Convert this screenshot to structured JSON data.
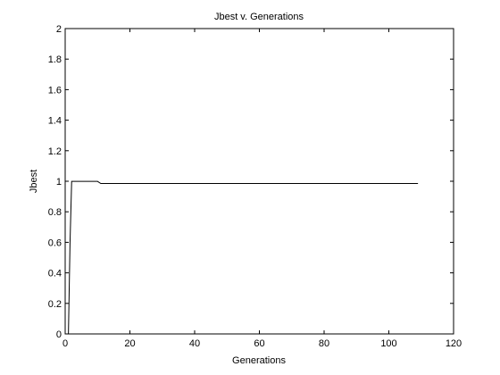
{
  "chart_data": {
    "type": "line",
    "title": "Jbest v. Generations",
    "xlabel": "Generations",
    "ylabel": "Jbest",
    "xlim": [
      0,
      120
    ],
    "ylim": [
      0,
      2
    ],
    "xticks": [
      0,
      20,
      40,
      60,
      80,
      100,
      120
    ],
    "yticks": [
      0,
      0.2,
      0.4,
      0.6,
      0.8,
      1,
      1.2,
      1.4,
      1.6,
      1.8,
      2
    ],
    "xtick_labels": [
      "0",
      "20",
      "40",
      "60",
      "80",
      "100",
      "120"
    ],
    "ytick_labels": [
      "0",
      "0.2",
      "0.4",
      "0.6",
      "0.8",
      "1",
      "1.2",
      "1.4",
      "1.6",
      "1.8",
      "2"
    ],
    "grid": false,
    "series": [
      {
        "x": [
          1,
          1.5,
          2,
          10,
          11,
          109
        ],
        "y": [
          0,
          0.6,
          0.999,
          0.999,
          0.985,
          0.985
        ]
      }
    ],
    "colors": {
      "line": "#000000",
      "axes": "#000000",
      "background": "#ffffff"
    }
  }
}
